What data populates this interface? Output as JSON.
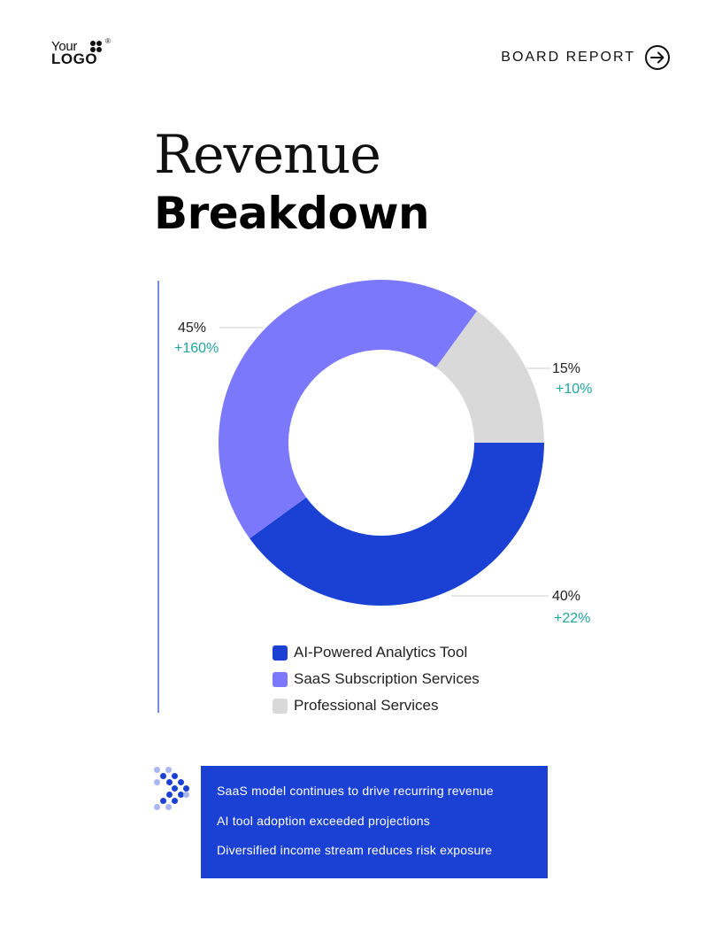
{
  "logo": {
    "line1": "Your",
    "line2": "LOGO",
    "reg": "®"
  },
  "header": {
    "report_label": "BOARD REPORT",
    "arrow_icon": "arrow-right-circle-icon"
  },
  "title": {
    "line1": "Revenue",
    "line2": "Breakdown"
  },
  "colors": {
    "ai": "#1a41d4",
    "saas": "#7b78fb",
    "services": "#d9d9d9",
    "change": "#1fa5a0",
    "note_box": "#1a41d4"
  },
  "chart_data": {
    "type": "pie",
    "donut": true,
    "title": "",
    "slices": [
      {
        "label": "AI-Powered Analytics Tool",
        "value": 40,
        "pct_label": "40%",
        "change_label": "+22%",
        "color": "#1a41d4"
      },
      {
        "label": "SaaS Subscription Services",
        "value": 45,
        "pct_label": "45%",
        "change_label": "+160%",
        "color": "#7b78fb"
      },
      {
        "label": "Professional Services",
        "value": 15,
        "pct_label": "15%",
        "change_label": "+10%",
        "color": "#d9d9d9"
      }
    ],
    "legend": {
      "position": "bottom"
    }
  },
  "notes": {
    "items": [
      "SaaS model continues to drive recurring revenue",
      "AI tool adoption exceeded projections",
      "Diversified income stream reduces risk exposure"
    ]
  }
}
